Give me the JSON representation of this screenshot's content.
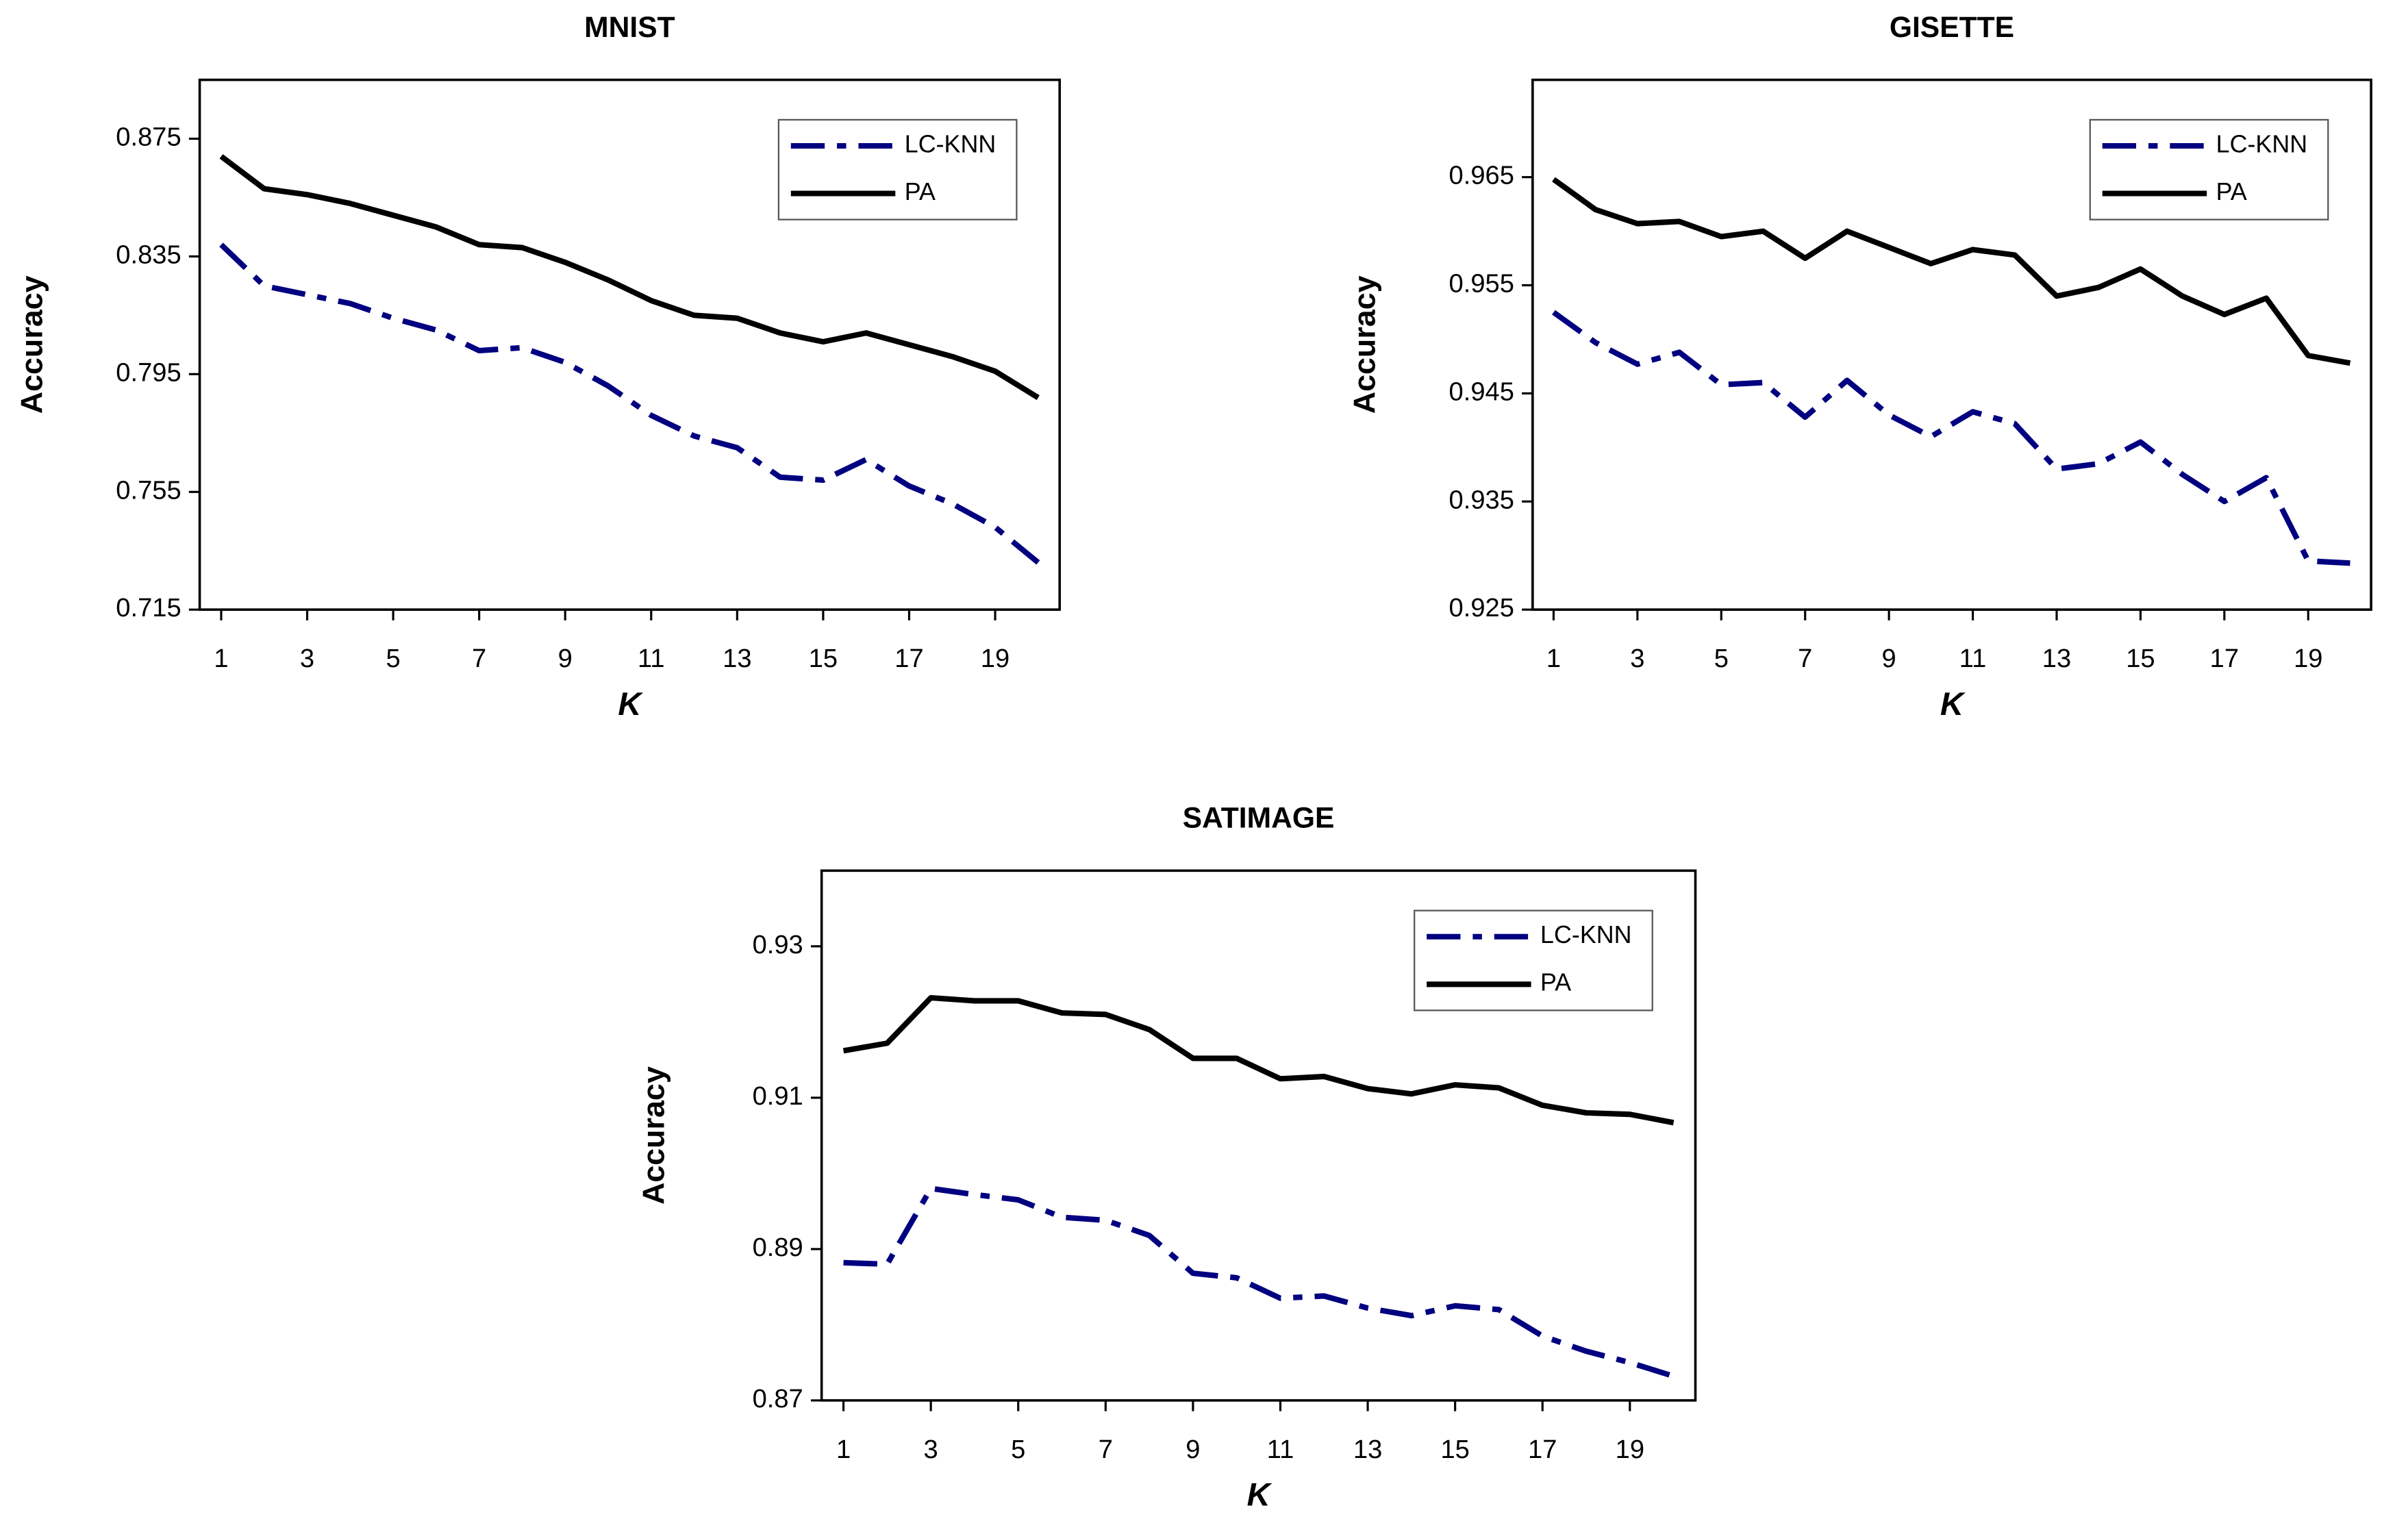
{
  "chart_data": [
    {
      "type": "line",
      "title": "MNIST",
      "xlabel": "K",
      "ylabel": "Accuracy",
      "x": [
        1,
        2,
        3,
        4,
        5,
        6,
        7,
        8,
        9,
        10,
        11,
        12,
        13,
        14,
        15,
        16,
        17,
        18,
        19,
        20
      ],
      "xlim": [
        0.5,
        20.5
      ],
      "xticks": [
        1,
        3,
        5,
        7,
        9,
        11,
        13,
        15,
        17,
        19
      ],
      "ylim": [
        0.715,
        0.895
      ],
      "yticks": [
        0.715,
        0.755,
        0.795,
        0.835,
        0.875
      ],
      "legend": "upper right",
      "series": [
        {
          "name": "LC-KNN",
          "color": "#000080",
          "linestyle": "dash-dot",
          "values": [
            0.839,
            0.825,
            0.822,
            0.819,
            0.814,
            0.81,
            0.803,
            0.804,
            0.799,
            0.791,
            0.781,
            0.774,
            0.77,
            0.76,
            0.759,
            0.766,
            0.757,
            0.751,
            0.743,
            0.731
          ]
        },
        {
          "name": "PA",
          "color": "#000000",
          "linestyle": "solid",
          "values": [
            0.869,
            0.858,
            0.856,
            0.853,
            0.849,
            0.845,
            0.839,
            0.838,
            0.833,
            0.827,
            0.82,
            0.815,
            0.814,
            0.809,
            0.806,
            0.809,
            0.805,
            0.801,
            0.796,
            0.787
          ]
        }
      ]
    },
    {
      "type": "line",
      "title": "GISETTE",
      "xlabel": "K",
      "ylabel": "Accuracy",
      "x": [
        1,
        2,
        3,
        4,
        5,
        6,
        7,
        8,
        9,
        10,
        11,
        12,
        13,
        14,
        15,
        16,
        17,
        18,
        19,
        20
      ],
      "xlim": [
        0.5,
        20.5
      ],
      "xticks": [
        1,
        3,
        5,
        7,
        9,
        11,
        13,
        15,
        17,
        19
      ],
      "ylim": [
        0.925,
        0.974
      ],
      "yticks": [
        0.925,
        0.935,
        0.945,
        0.955,
        0.965
      ],
      "legend": "upper right",
      "series": [
        {
          "name": "LC-KNN",
          "color": "#000080",
          "linestyle": "dash-dot",
          "values": [
            0.9525,
            0.9497,
            0.9477,
            0.9488,
            0.9458,
            0.946,
            0.9428,
            0.9462,
            0.943,
            0.941,
            0.9433,
            0.9422,
            0.938,
            0.9385,
            0.9405,
            0.9375,
            0.935,
            0.9372,
            0.9295,
            0.9293
          ]
        },
        {
          "name": "PA",
          "color": "#000000",
          "linestyle": "solid",
          "values": [
            0.9648,
            0.962,
            0.9607,
            0.9609,
            0.9595,
            0.96,
            0.9575,
            0.96,
            0.9585,
            0.957,
            0.9583,
            0.9578,
            0.954,
            0.9548,
            0.9565,
            0.954,
            0.9523,
            0.9538,
            0.9485,
            0.9478
          ]
        }
      ]
    },
    {
      "type": "line",
      "title": "SATIMAGE",
      "xlabel": "K",
      "ylabel": "Accuracy",
      "x": [
        1,
        2,
        3,
        4,
        5,
        6,
        7,
        8,
        9,
        10,
        11,
        12,
        13,
        14,
        15,
        16,
        17,
        18,
        19,
        20
      ],
      "xlim": [
        0.5,
        20.5
      ],
      "xticks": [
        1,
        3,
        5,
        7,
        9,
        11,
        13,
        15,
        17,
        19
      ],
      "ylim": [
        0.87,
        0.94
      ],
      "yticks": [
        0.87,
        0.89,
        0.91,
        0.93
      ],
      "legend": "upper right",
      "series": [
        {
          "name": "LC-KNN",
          "color": "#000080",
          "linestyle": "dash-dot",
          "values": [
            0.8882,
            0.888,
            0.898,
            0.8972,
            0.8965,
            0.8942,
            0.8938,
            0.8918,
            0.8868,
            0.8862,
            0.8835,
            0.8838,
            0.8822,
            0.8812,
            0.8825,
            0.882,
            0.8785,
            0.8765,
            0.875,
            0.8732
          ]
        },
        {
          "name": "PA",
          "color": "#000000",
          "linestyle": "solid",
          "values": [
            0.9162,
            0.9172,
            0.9232,
            0.9228,
            0.9228,
            0.9212,
            0.921,
            0.919,
            0.9152,
            0.9152,
            0.9125,
            0.9128,
            0.9112,
            0.9105,
            0.9117,
            0.9113,
            0.909,
            0.908,
            0.9078,
            0.9067
          ]
        }
      ]
    }
  ]
}
